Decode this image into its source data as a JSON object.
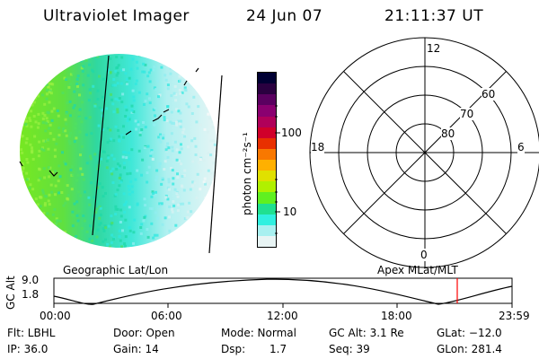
{
  "header": {
    "instrument": "Ultraviolet Imager",
    "date": "24 Jun 07",
    "time": "21:11:37 UT"
  },
  "colorbar": {
    "unit_label": "photon cm⁻²s⁻¹",
    "ticks": [
      "100",
      "10"
    ],
    "colors": [
      "#000033",
      "#2a0040",
      "#5a0060",
      "#8a0070",
      "#b0005a",
      "#d0002a",
      "#e83000",
      "#f87800",
      "#ffb000",
      "#e0e000",
      "#b0f000",
      "#60f020",
      "#20e090",
      "#30f0e0",
      "#a8f0f0",
      "#e8f4f4"
    ]
  },
  "polar": {
    "mlt_labels": {
      "top": "12",
      "bottom": "0",
      "left": "18",
      "right": "6"
    },
    "lat_labels": [
      "60",
      "70",
      "80"
    ]
  },
  "altitude_plot": {
    "ylabel": "GC Alt",
    "ytick_top": "9.0",
    "ytick_bottom": "1.8",
    "left_title": "Geographic Lat/Lon",
    "right_title": "Apex MLat/MLT",
    "xticks": [
      "00:00",
      "06:00",
      "12:00",
      "18:00",
      "23:59"
    ],
    "marker_color": "#ff0000"
  },
  "info": {
    "flt": "Flt: LBHL",
    "ip": "IP: 36.0",
    "door": "Door: Open",
    "gain": "Gain: 14",
    "mode": "Mode: Normal",
    "dsp_label": "Dsp:",
    "dsp_value": "1.7",
    "gc_alt": "GC Alt: 3.1 Re",
    "seq": "Seq: 39",
    "glat": "GLat: −12.0",
    "glon": "GLon: 281.4"
  }
}
